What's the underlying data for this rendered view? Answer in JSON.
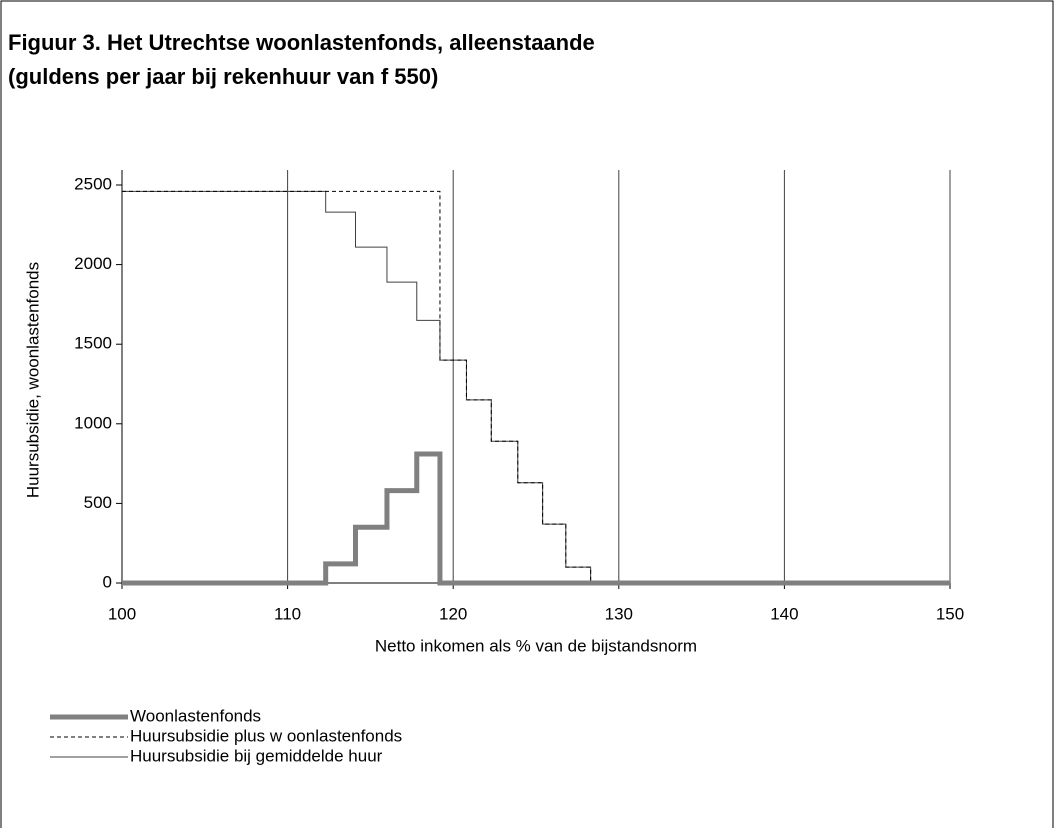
{
  "chart_data": {
    "type": "step",
    "title": "Figuur 3.  Het Utrechtse woonlastenfonds, alleenstaande",
    "subtitle": "(guldens per jaar bij rekenhuur van f 550)",
    "x_label": "Netto inkomen als % van de bijstandsnorm",
    "y_label": "Huursubsidie, woonlastenfonds",
    "xlim": [
      100,
      150
    ],
    "xticks": [
      100,
      110,
      120,
      130,
      140,
      150
    ],
    "ylim": [
      0,
      2500
    ],
    "yticks": [
      0,
      500,
      1000,
      1500,
      2000,
      2500
    ],
    "grid": "x",
    "series": [
      {
        "name": "Woonlastenfonds",
        "color": "#808080",
        "width": 5,
        "dash": "solid",
        "x": [
          100,
          112.3,
          114.1,
          116,
          117.8,
          119.2,
          150
        ],
        "values": [
          0,
          120,
          350,
          580,
          810,
          0,
          0
        ]
      },
      {
        "name": "Huursubsidie plus w oonlastenfonds",
        "color": "#000000",
        "width": 1,
        "dash": "dashed",
        "x": [
          100,
          119.2,
          120.8,
          122.3,
          123.9,
          125.4,
          126.8,
          128.3,
          150
        ],
        "values": [
          2460,
          1400,
          1150,
          890,
          630,
          370,
          100,
          0,
          0
        ]
      },
      {
        "name": "Huursubsidie bij gemiddelde huur",
        "color": "#404040",
        "width": 1,
        "dash": "solid",
        "x": [
          100,
          112.3,
          114.1,
          116,
          117.8,
          119.2,
          120.8,
          122.3,
          123.9,
          125.4,
          126.8,
          128.3,
          150
        ],
        "values": [
          2460,
          2330,
          2110,
          1890,
          1650,
          1400,
          1150,
          890,
          630,
          370,
          100,
          0,
          0
        ]
      }
    ]
  }
}
